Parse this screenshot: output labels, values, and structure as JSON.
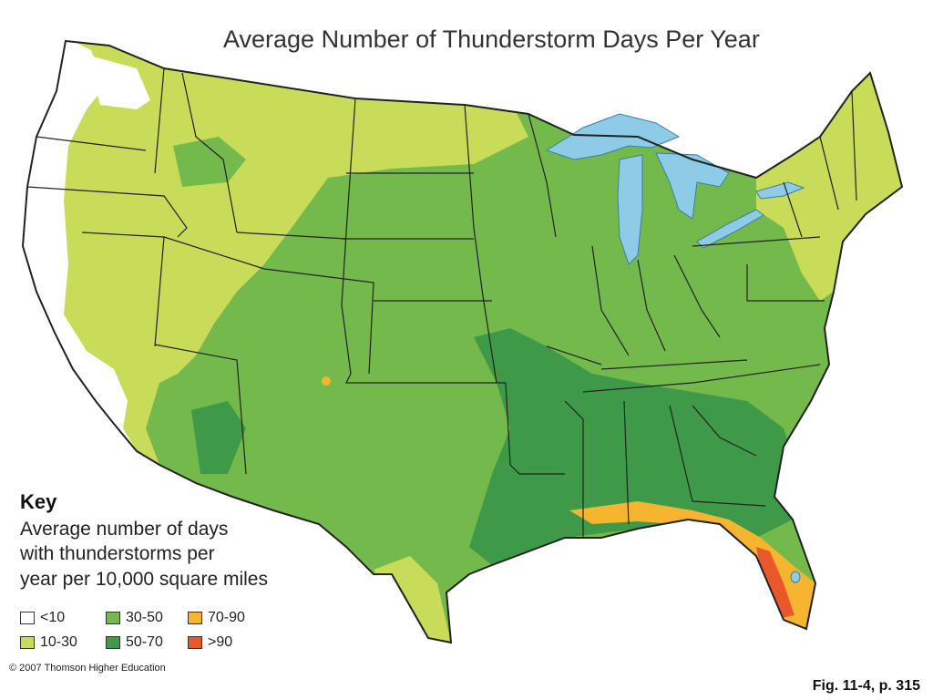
{
  "title": "Average Number of Thunderstorm Days Per Year",
  "key": {
    "heading": "Key",
    "description_lines": [
      "Average number of days",
      "with thunderstorms per",
      "year per 10,000 square miles"
    ],
    "items": [
      {
        "label": "<10",
        "color": "#ffffff"
      },
      {
        "label": "10-30",
        "color": "#c8dc5a"
      },
      {
        "label": "30-50",
        "color": "#74b94c"
      },
      {
        "label": "50-70",
        "color": "#3e9a48"
      },
      {
        "label": "70-90",
        "color": "#f6b52e"
      },
      {
        "label": ">90",
        "color": "#e8582a"
      }
    ]
  },
  "water_color": "#8ecbe6",
  "state_line_color": "#222222",
  "copyright": "© 2007 Thomson Higher Education",
  "figure_caption": "Fig. 11-4, p. 315"
}
